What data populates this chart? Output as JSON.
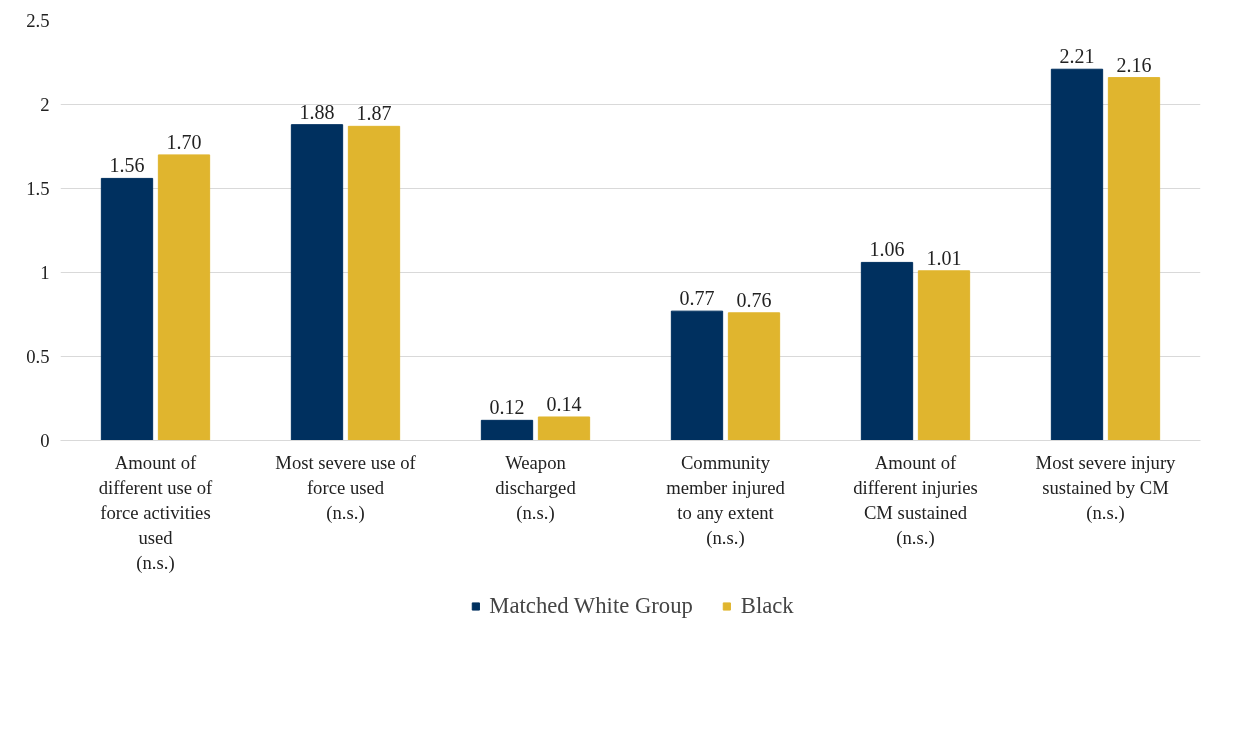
{
  "chart_data": {
    "type": "bar",
    "categories": [
      "Amount of\ndifferent use of\nforce activities\nused\n(n.s.)",
      "Most severe use of\nforce used\n(n.s.)",
      "Weapon\ndischarged\n(n.s.)",
      "Community\nmember injured\nto any extent\n(n.s.)",
      "Amount of\ndifferent injuries\nCM sustained\n(n.s.)",
      "Most severe injury\nsustained by CM\n(n.s.)"
    ],
    "series": [
      {
        "name": "Matched White Group",
        "color": "#00305f",
        "values": [
          1.56,
          1.88,
          0.12,
          0.77,
          1.06,
          2.21
        ],
        "value_labels": [
          "1.56",
          "1.88",
          "0.12",
          "0.77",
          "1.06",
          "2.21"
        ]
      },
      {
        "name": "Black",
        "color": "#e0b52e",
        "values": [
          1.7,
          1.87,
          0.14,
          0.76,
          1.01,
          2.16
        ],
        "value_labels": [
          "1.70",
          "1.87",
          "0.14",
          "0.76",
          "1.01",
          "2.16"
        ]
      }
    ],
    "ylim": [
      0,
      2.5
    ],
    "yticks": [
      0,
      0.5,
      1,
      1.5,
      2,
      2.5
    ],
    "grid": "y",
    "legend": "bottom"
  }
}
